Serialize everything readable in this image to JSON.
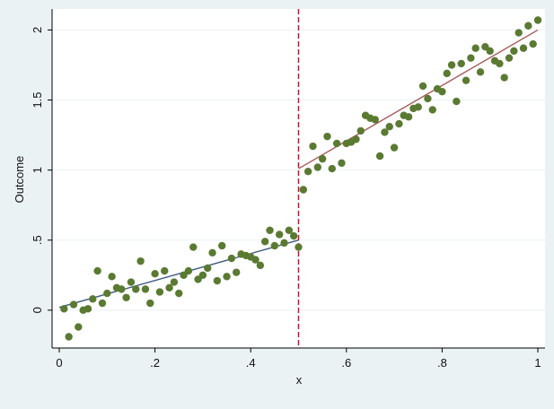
{
  "chart_data": {
    "type": "scatter",
    "title": "",
    "xlabel": "x",
    "ylabel": "Outcome",
    "xlim": [
      -0.015,
      1.015
    ],
    "ylim": [
      -0.27,
      2.15
    ],
    "x_ticks": [
      0,
      0.2,
      0.4,
      0.6,
      0.8,
      1
    ],
    "x_tick_labels": [
      "0",
      ".2",
      ".4",
      ".6",
      ".8",
      "1"
    ],
    "y_ticks": [
      0,
      0.5,
      1,
      1.5,
      2
    ],
    "y_tick_labels": [
      "0",
      ".5",
      "1",
      "1.5",
      "2"
    ],
    "grid": "horizontal",
    "cutoff": 0.5,
    "colors": {
      "background": "#eaf2f3",
      "plot_area": "#ffffff",
      "points": "#5a7a32",
      "left_fit": "#3d5a80",
      "right_fit": "#a65a5a",
      "cutoff_line": "#c0152f",
      "grid": "#eaf2f3"
    },
    "points": [
      [
        0.01,
        0.01
      ],
      [
        0.02,
        -0.19
      ],
      [
        0.03,
        0.04
      ],
      [
        0.04,
        -0.12
      ],
      [
        0.05,
        0.0
      ],
      [
        0.06,
        0.01
      ],
      [
        0.07,
        0.08
      ],
      [
        0.08,
        0.28
      ],
      [
        0.09,
        0.05
      ],
      [
        0.1,
        0.12
      ],
      [
        0.11,
        0.24
      ],
      [
        0.12,
        0.16
      ],
      [
        0.13,
        0.15
      ],
      [
        0.14,
        0.09
      ],
      [
        0.15,
        0.2
      ],
      [
        0.16,
        0.15
      ],
      [
        0.17,
        0.35
      ],
      [
        0.18,
        0.15
      ],
      [
        0.19,
        0.05
      ],
      [
        0.2,
        0.26
      ],
      [
        0.21,
        0.13
      ],
      [
        0.22,
        0.28
      ],
      [
        0.23,
        0.16
      ],
      [
        0.24,
        0.2
      ],
      [
        0.25,
        0.12
      ],
      [
        0.26,
        0.25
      ],
      [
        0.27,
        0.28
      ],
      [
        0.28,
        0.45
      ],
      [
        0.29,
        0.22
      ],
      [
        0.3,
        0.25
      ],
      [
        0.31,
        0.3
      ],
      [
        0.32,
        0.41
      ],
      [
        0.33,
        0.21
      ],
      [
        0.34,
        0.46
      ],
      [
        0.35,
        0.24
      ],
      [
        0.36,
        0.37
      ],
      [
        0.37,
        0.27
      ],
      [
        0.38,
        0.4
      ],
      [
        0.39,
        0.39
      ],
      [
        0.4,
        0.38
      ],
      [
        0.41,
        0.36
      ],
      [
        0.42,
        0.32
      ],
      [
        0.43,
        0.49
      ],
      [
        0.44,
        0.57
      ],
      [
        0.45,
        0.46
      ],
      [
        0.46,
        0.54
      ],
      [
        0.47,
        0.48
      ],
      [
        0.48,
        0.57
      ],
      [
        0.49,
        0.53
      ],
      [
        0.5,
        0.45
      ],
      [
        0.51,
        0.86
      ],
      [
        0.52,
        0.99
      ],
      [
        0.53,
        1.17
      ],
      [
        0.54,
        1.02
      ],
      [
        0.55,
        1.08
      ],
      [
        0.56,
        1.24
      ],
      [
        0.57,
        1.01
      ],
      [
        0.58,
        1.19
      ],
      [
        0.59,
        1.05
      ],
      [
        0.6,
        1.19
      ],
      [
        0.61,
        1.2
      ],
      [
        0.62,
        1.22
      ],
      [
        0.63,
        1.28
      ],
      [
        0.64,
        1.39
      ],
      [
        0.65,
        1.37
      ],
      [
        0.66,
        1.36
      ],
      [
        0.67,
        1.1
      ],
      [
        0.68,
        1.27
      ],
      [
        0.69,
        1.31
      ],
      [
        0.7,
        1.16
      ],
      [
        0.71,
        1.33
      ],
      [
        0.72,
        1.39
      ],
      [
        0.73,
        1.38
      ],
      [
        0.74,
        1.44
      ],
      [
        0.75,
        1.45
      ],
      [
        0.76,
        1.6
      ],
      [
        0.77,
        1.51
      ],
      [
        0.78,
        1.43
      ],
      [
        0.79,
        1.58
      ],
      [
        0.8,
        1.56
      ],
      [
        0.81,
        1.69
      ],
      [
        0.82,
        1.75
      ],
      [
        0.83,
        1.49
      ],
      [
        0.84,
        1.76
      ],
      [
        0.85,
        1.64
      ],
      [
        0.86,
        1.8
      ],
      [
        0.87,
        1.87
      ],
      [
        0.88,
        1.7
      ],
      [
        0.89,
        1.88
      ],
      [
        0.9,
        1.85
      ],
      [
        0.91,
        1.78
      ],
      [
        0.92,
        1.76
      ],
      [
        0.93,
        1.66
      ],
      [
        0.94,
        1.8
      ],
      [
        0.95,
        1.85
      ],
      [
        0.96,
        1.98
      ],
      [
        0.97,
        1.87
      ],
      [
        0.98,
        2.03
      ],
      [
        0.99,
        1.9
      ],
      [
        1.0,
        2.07
      ]
    ],
    "fit_lines": [
      {
        "x": [
          0.0,
          0.5
        ],
        "y": [
          0.02,
          0.5
        ]
      },
      {
        "x": [
          0.5,
          1.0
        ],
        "y": [
          1.01,
          2.0
        ]
      }
    ]
  }
}
